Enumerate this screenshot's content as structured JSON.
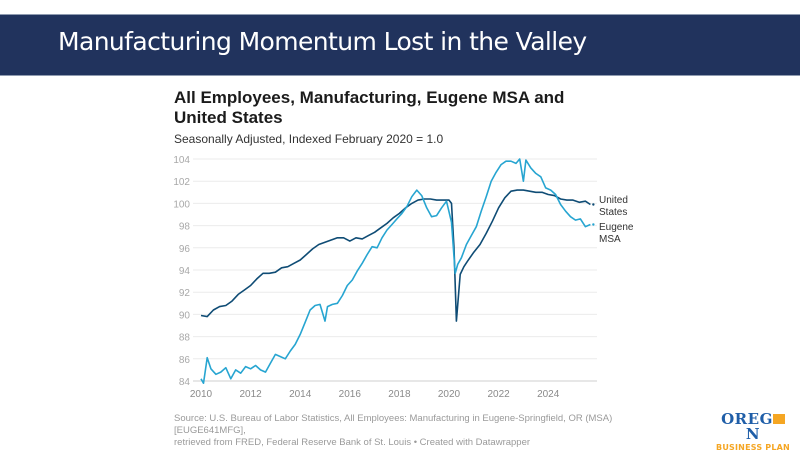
{
  "banner": {
    "title": "Manufacturing Momentum Lost in the Valley"
  },
  "footer": {
    "source_line1": "Source: U.S. Bureau of Labor Statistics, All Employees: Manufacturing in Eugene-Springfield, OR (MSA) [EUGE641MFG],",
    "source_line2": "retrieved from FRED, Federal Reserve Bank of St. Louis • Created with Datawrapper"
  },
  "logo": {
    "line1_a": "OREG",
    "line1_b": "N",
    "line2": "BUSINESS PLAN",
    "primary_color": "#1f5ea8",
    "accent_color": "#f5a623"
  },
  "chart_data": {
    "type": "line",
    "title": "All Employees, Manufacturing, Eugene MSA and United States",
    "subtitle": "Seasonally Adjusted, Indexed February 2020 = 1.0",
    "xlabel": "",
    "ylabel": "",
    "xlim": [
      2010,
      2025.8
    ],
    "ylim": [
      84,
      104
    ],
    "grid": true,
    "x_ticks": [
      "2010",
      "2012",
      "2014",
      "2016",
      "2018",
      "2020",
      "2022",
      "2024"
    ],
    "y_ticks": [
      "84",
      "86",
      "88",
      "90",
      "92",
      "94",
      "96",
      "98",
      "100",
      "102",
      "104"
    ],
    "series": [
      {
        "name": "United States",
        "label_lines": [
          "United",
          "States"
        ],
        "color": "#0f4c75",
        "x": [
          2010.0,
          2010.25,
          2010.5,
          2010.75,
          2011.0,
          2011.25,
          2011.5,
          2011.75,
          2012.0,
          2012.25,
          2012.5,
          2012.75,
          2013.0,
          2013.25,
          2013.5,
          2013.75,
          2014.0,
          2014.25,
          2014.5,
          2014.75,
          2015.0,
          2015.25,
          2015.5,
          2015.75,
          2016.0,
          2016.25,
          2016.5,
          2016.75,
          2017.0,
          2017.25,
          2017.5,
          2017.75,
          2018.0,
          2018.25,
          2018.5,
          2018.75,
          2019.0,
          2019.25,
          2019.5,
          2019.75,
          2020.0,
          2020.1,
          2020.2,
          2020.3,
          2020.45,
          2020.6,
          2020.75,
          2021.0,
          2021.25,
          2021.5,
          2021.75,
          2022.0,
          2022.25,
          2022.5,
          2022.75,
          2023.0,
          2023.25,
          2023.5,
          2023.75,
          2024.0,
          2024.25,
          2024.5,
          2024.75,
          2025.0,
          2025.25,
          2025.5,
          2025.7
        ],
        "values": [
          89.9,
          89.8,
          90.4,
          90.7,
          90.8,
          91.2,
          91.8,
          92.2,
          92.6,
          93.2,
          93.7,
          93.7,
          93.8,
          94.2,
          94.3,
          94.6,
          94.9,
          95.4,
          95.9,
          96.3,
          96.5,
          96.7,
          96.9,
          96.9,
          96.6,
          96.9,
          96.8,
          97.1,
          97.4,
          97.8,
          98.2,
          98.7,
          99.1,
          99.6,
          100.0,
          100.3,
          100.4,
          100.4,
          100.3,
          100.3,
          100.3,
          100.0,
          96.0,
          89.4,
          93.6,
          94.3,
          94.8,
          95.6,
          96.3,
          97.3,
          98.4,
          99.6,
          100.5,
          101.1,
          101.2,
          101.2,
          101.1,
          101.0,
          101.0,
          100.8,
          100.7,
          100.4,
          100.3,
          100.3,
          100.1,
          100.2,
          99.9
        ]
      },
      {
        "name": "Eugene MSA",
        "label_lines": [
          "Eugene",
          "MSA"
        ],
        "color": "#27a5d1",
        "x": [
          2010.0,
          2010.1,
          2010.25,
          2010.4,
          2010.6,
          2010.8,
          2011.0,
          2011.2,
          2011.4,
          2011.6,
          2011.8,
          2012.0,
          2012.2,
          2012.4,
          2012.6,
          2012.8,
          2013.0,
          2013.2,
          2013.4,
          2013.6,
          2013.8,
          2014.0,
          2014.2,
          2014.4,
          2014.6,
          2014.8,
          2015.0,
          2015.1,
          2015.3,
          2015.5,
          2015.7,
          2015.9,
          2016.1,
          2016.3,
          2016.5,
          2016.7,
          2016.9,
          2017.1,
          2017.3,
          2017.5,
          2017.7,
          2017.9,
          2018.1,
          2018.3,
          2018.5,
          2018.7,
          2018.9,
          2019.1,
          2019.3,
          2019.5,
          2019.7,
          2019.9,
          2020.1,
          2020.25,
          2020.35,
          2020.5,
          2020.7,
          2020.9,
          2021.1,
          2021.3,
          2021.5,
          2021.7,
          2021.9,
          2022.1,
          2022.3,
          2022.5,
          2022.7,
          2022.85,
          2023.0,
          2023.1,
          2023.3,
          2023.5,
          2023.7,
          2023.9,
          2024.1,
          2024.3,
          2024.5,
          2024.7,
          2024.9,
          2025.1,
          2025.3,
          2025.5,
          2025.7
        ],
        "values": [
          84.2,
          83.8,
          86.1,
          85.1,
          84.6,
          84.8,
          85.2,
          84.2,
          85.0,
          84.7,
          85.3,
          85.1,
          85.4,
          85.0,
          84.8,
          85.6,
          86.4,
          86.2,
          86.0,
          86.7,
          87.3,
          88.2,
          89.3,
          90.4,
          90.8,
          90.9,
          89.4,
          90.7,
          90.9,
          91.0,
          91.7,
          92.6,
          93.1,
          93.9,
          94.6,
          95.4,
          96.1,
          96.0,
          96.9,
          97.6,
          98.1,
          98.6,
          99.1,
          99.7,
          100.6,
          101.2,
          100.7,
          99.6,
          98.8,
          98.9,
          99.6,
          100.2,
          98.3,
          93.7,
          94.5,
          95.1,
          96.3,
          97.1,
          97.9,
          99.3,
          100.6,
          102.0,
          102.8,
          103.5,
          103.8,
          103.8,
          103.6,
          104.0,
          102.0,
          103.9,
          103.2,
          102.7,
          102.4,
          101.4,
          101.2,
          100.8,
          99.9,
          99.3,
          98.8,
          98.5,
          98.6,
          97.9,
          98.1
        ]
      }
    ]
  }
}
